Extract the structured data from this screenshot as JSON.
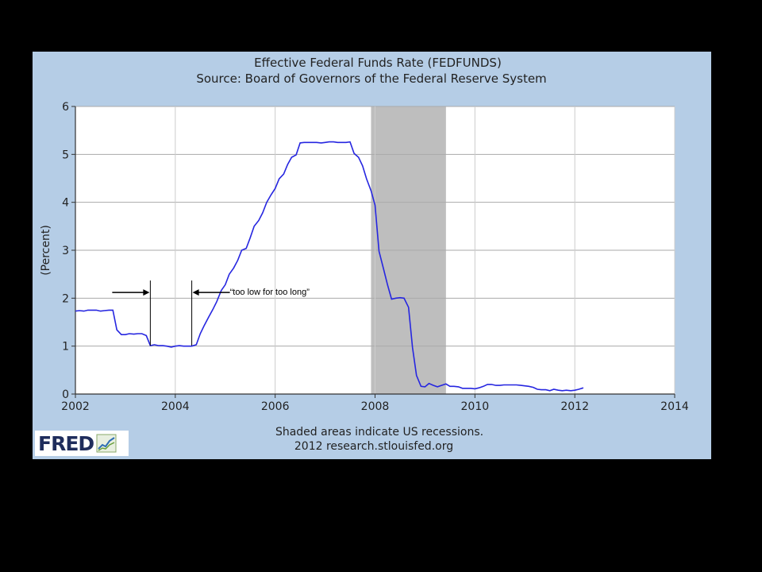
{
  "chart_data": {
    "type": "line",
    "title": "Effective Federal Funds Rate (FEDFUNDS)",
    "subtitle": "Source: Board of Governors of the Federal Reserve System",
    "ylabel": "(Percent)",
    "xlabel": "",
    "xlim": [
      2002,
      2014
    ],
    "ylim": [
      0,
      6
    ],
    "x_ticks": [
      2002,
      2004,
      2006,
      2008,
      2010,
      2012,
      2014
    ],
    "y_ticks": [
      0,
      1,
      2,
      3,
      4,
      5,
      6
    ],
    "grid": true,
    "line_color": "#2626e0",
    "recession_color": "#bebebe",
    "recession_bands": [
      [
        2007.92,
        2009.42
      ]
    ],
    "footer_line1": "Shaded areas indicate US recessions.",
    "footer_line2": "2012 research.stlouisfed.org",
    "annotation": {
      "text": "“too low for too long”",
      "from_x": 2003.5,
      "to_x": 2004.33,
      "y": 2.12
    },
    "series": [
      {
        "x": [
          2002.0,
          2002.08,
          2002.17,
          2002.25,
          2002.33,
          2002.42,
          2002.5,
          2002.58,
          2002.67,
          2002.75,
          2002.83,
          2002.92,
          2003.0,
          2003.08,
          2003.17,
          2003.25,
          2003.33,
          2003.42,
          2003.5,
          2003.58,
          2003.67,
          2003.75,
          2003.83,
          2003.92,
          2004.0,
          2004.08,
          2004.17,
          2004.25,
          2004.33,
          2004.42,
          2004.5,
          2004.58,
          2004.67,
          2004.75,
          2004.83,
          2004.92,
          2005.0,
          2005.08,
          2005.17,
          2005.25,
          2005.33,
          2005.42,
          2005.5,
          2005.58,
          2005.67,
          2005.75,
          2005.83,
          2005.92,
          2006.0,
          2006.08,
          2006.17,
          2006.25,
          2006.33,
          2006.42,
          2006.5,
          2006.58,
          2006.67,
          2006.75,
          2006.83,
          2006.92,
          2007.0,
          2007.08,
          2007.17,
          2007.25,
          2007.33,
          2007.42,
          2007.5,
          2007.58,
          2007.67,
          2007.75,
          2007.83,
          2007.92,
          2008.0,
          2008.08,
          2008.17,
          2008.25,
          2008.33,
          2008.42,
          2008.5,
          2008.58,
          2008.67,
          2008.75,
          2008.83,
          2008.92,
          2009.0,
          2009.08,
          2009.17,
          2009.25,
          2009.33,
          2009.42,
          2009.5,
          2009.58,
          2009.67,
          2009.75,
          2009.83,
          2009.92,
          2010.0,
          2010.08,
          2010.17,
          2010.25,
          2010.33,
          2010.42,
          2010.5,
          2010.58,
          2010.67,
          2010.75,
          2010.83,
          2010.92,
          2011.0,
          2011.08,
          2011.17,
          2011.25,
          2011.33,
          2011.42,
          2011.5,
          2011.58,
          2011.67,
          2011.75,
          2011.83,
          2011.92,
          2012.0,
          2012.08,
          2012.17
        ],
        "values": [
          1.73,
          1.74,
          1.73,
          1.75,
          1.75,
          1.75,
          1.73,
          1.74,
          1.75,
          1.75,
          1.34,
          1.24,
          1.24,
          1.26,
          1.25,
          1.26,
          1.26,
          1.22,
          1.01,
          1.03,
          1.01,
          1.01,
          1.0,
          0.98,
          1.0,
          1.01,
          1.0,
          1.0,
          1.0,
          1.03,
          1.26,
          1.43,
          1.61,
          1.76,
          1.93,
          2.16,
          2.28,
          2.5,
          2.63,
          2.79,
          3.0,
          3.04,
          3.26,
          3.5,
          3.62,
          3.78,
          4.0,
          4.16,
          4.29,
          4.49,
          4.59,
          4.79,
          4.94,
          4.99,
          5.24,
          5.25,
          5.25,
          5.25,
          5.25,
          5.24,
          5.25,
          5.26,
          5.26,
          5.25,
          5.25,
          5.25,
          5.26,
          5.02,
          4.94,
          4.76,
          4.49,
          4.24,
          3.94,
          2.98,
          2.61,
          2.28,
          1.98,
          2.0,
          2.01,
          2.0,
          1.81,
          0.97,
          0.39,
          0.16,
          0.15,
          0.22,
          0.18,
          0.15,
          0.18,
          0.21,
          0.16,
          0.16,
          0.15,
          0.12,
          0.12,
          0.12,
          0.11,
          0.13,
          0.16,
          0.2,
          0.2,
          0.18,
          0.18,
          0.19,
          0.19,
          0.19,
          0.19,
          0.18,
          0.17,
          0.16,
          0.14,
          0.1,
          0.09,
          0.09,
          0.07,
          0.1,
          0.08,
          0.07,
          0.08,
          0.07,
          0.08,
          0.1,
          0.13
        ]
      }
    ]
  },
  "logo": {
    "text": "FRED"
  }
}
